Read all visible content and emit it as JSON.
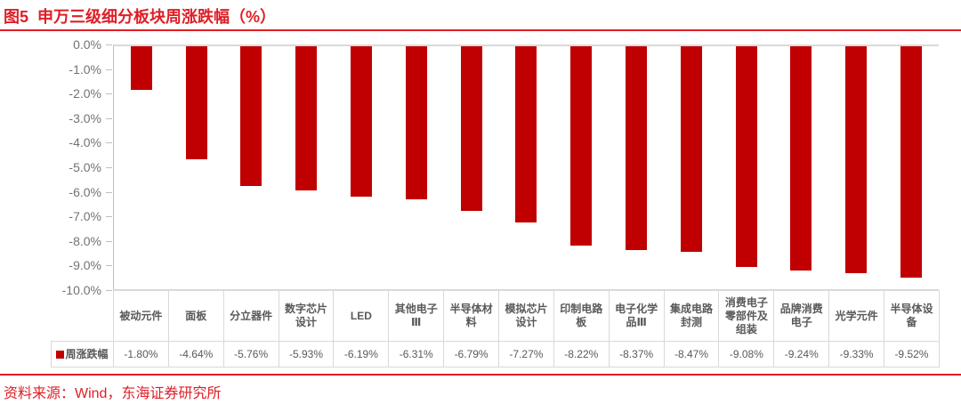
{
  "header": {
    "figure_label_title": "图5  申万三级细分板块周涨跌幅（%）"
  },
  "footer": {
    "source": "资料来源：Wind，东海证券研究所"
  },
  "colors": {
    "accent_red": "#DF1E26",
    "bar_red": "#C00000",
    "grid_gray": "#D9D9D9",
    "axis_text_gray": "#737373",
    "table_text_gray": "#595959"
  },
  "chart_data": {
    "type": "bar",
    "title": "申万三级细分板块周涨跌幅（%）",
    "legend": "周涨跌幅",
    "legend_position": "table-row-left",
    "grid": false,
    "bar_color": "#C00000",
    "categories": [
      "被动元件",
      "面板",
      "分立器件",
      "数字芯片设计",
      "LED",
      "其他电子Ⅲ",
      "半导体材料",
      "模拟芯片设计",
      "印制电路板",
      "电子化学品Ⅲ",
      "集成电路封测",
      "消费电子零部件及组装",
      "品牌消费电子",
      "光学元件",
      "半导体设备"
    ],
    "values": [
      -1.8,
      -4.64,
      -5.76,
      -5.93,
      -6.19,
      -6.31,
      -6.79,
      -7.27,
      -8.22,
      -8.37,
      -8.47,
      -9.08,
      -9.24,
      -9.33,
      -9.52
    ],
    "value_labels": [
      "-1.80%",
      "-4.64%",
      "-5.76%",
      "-5.93%",
      "-6.19%",
      "-6.31%",
      "-6.79%",
      "-7.27%",
      "-8.22%",
      "-8.37%",
      "-8.47%",
      "-9.08%",
      "-9.24%",
      "-9.33%",
      "-9.52%"
    ],
    "ylabel": "",
    "xlabel": "",
    "ylim": [
      -10.0,
      0.0
    ],
    "ytick_labels": [
      "0.0%",
      "-1.0%",
      "-2.0%",
      "-3.0%",
      "-4.0%",
      "-5.0%",
      "-6.0%",
      "-7.0%",
      "-8.0%",
      "-9.0%",
      "-10.0%"
    ]
  }
}
